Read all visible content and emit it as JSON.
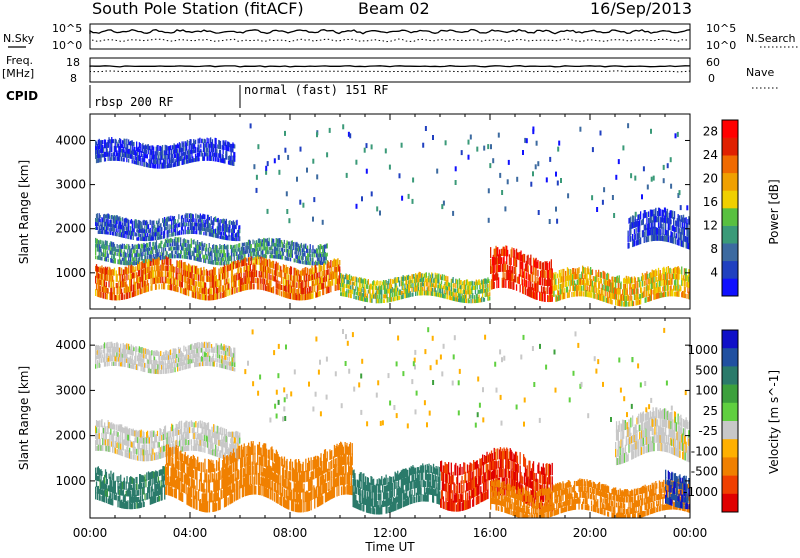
{
  "header": {
    "station": "South Pole Station (fitACF)",
    "beam": "Beam 02",
    "date": "16/Sep/2013"
  },
  "top_panels": {
    "nsky_label": "N.Sky",
    "nsky_ticks": [
      "10^5",
      "10^0"
    ],
    "nsearch_label": "N.Search",
    "nsearch_ticks": [
      "10^5",
      "10^0"
    ],
    "freq_label": "Freq.",
    "freq_unit": "[MHz]",
    "freq_ticks": [
      "18",
      "8"
    ],
    "nave_label": "Nave",
    "nave_ticks": [
      "60",
      "0"
    ],
    "cpid_label": "CPID",
    "cpid_segments": [
      {
        "label": "rbsp 200 RF",
        "start_hour": 0
      },
      {
        "label": "normal (fast) 151 RF",
        "start_hour": 6
      }
    ]
  },
  "colors": {
    "power_scale": [
      "#1010ff",
      "#2040c0",
      "#3c6aa0",
      "#3a9a78",
      "#58c040",
      "#f0d000",
      "#f0a000",
      "#f06a00",
      "#e02000",
      "#ff0000"
    ],
    "velocity_scale": [
      "#1010c8",
      "#2050a0",
      "#2a7a6a",
      "#3ca03c",
      "#60d040",
      "#c8c8c8",
      "#ffb000",
      "#f08000",
      "#f04000",
      "#e00000"
    ]
  },
  "chart_data": [
    {
      "type": "heatmap",
      "title": "",
      "ylabel": "Slant Range [km]",
      "xlabel": "",
      "xlim_hours": [
        0,
        24
      ],
      "ylim": [
        180,
        4600
      ],
      "yticks": [
        "1000",
        "2000",
        "3000",
        "4000"
      ],
      "colorbar": {
        "label": "Power [dB]",
        "ticks": [
          "4",
          "8",
          "12",
          "16",
          "20",
          "24",
          "28"
        ],
        "range": [
          0,
          30
        ]
      },
      "bands": [
        {
          "t0": 0.2,
          "t1": 5.8,
          "range": [
            3450,
            3950
          ],
          "value": 3
        },
        {
          "t0": 0.2,
          "t1": 6.0,
          "range": [
            1800,
            2250
          ],
          "value": 5
        },
        {
          "t0": 0.2,
          "t1": 9.5,
          "range": [
            1250,
            1700
          ],
          "value": 9
        },
        {
          "t0": 0.2,
          "t1": 10.0,
          "range": [
            500,
            1200
          ],
          "value": 22
        },
        {
          "t0": 10.0,
          "t1": 16.0,
          "range": [
            400,
            900
          ],
          "value": 15
        },
        {
          "t0": 16.0,
          "t1": 18.5,
          "range": [
            500,
            1400
          ],
          "value": 26
        },
        {
          "t0": 18.5,
          "t1": 24.0,
          "range": [
            350,
            1000
          ],
          "value": 18
        },
        {
          "t0": 21.5,
          "t1": 24.0,
          "range": [
            1600,
            2300
          ],
          "value": 4
        }
      ]
    },
    {
      "type": "heatmap",
      "title": "",
      "ylabel": "Slant Range [km]",
      "xlabel": "Time UT",
      "xlim_hours": [
        0,
        24
      ],
      "ylim": [
        180,
        4600
      ],
      "yticks": [
        "1000",
        "2000",
        "3000",
        "4000"
      ],
      "xticks": [
        "00:00",
        "04:00",
        "08:00",
        "12:00",
        "16:00",
        "20:00",
        "00:00"
      ],
      "colorbar": {
        "label": "Velocity [m s^-1]",
        "ticks": [
          "1000",
          "500",
          "100",
          "25",
          "-25",
          "-100",
          "-500",
          "-1000"
        ],
        "range": [
          -1000,
          1000
        ]
      },
      "bands": [
        {
          "t0": 0.2,
          "t1": 5.8,
          "range": [
            3450,
            3950
          ],
          "value": 0
        },
        {
          "t0": 0.2,
          "t1": 6.0,
          "range": [
            1550,
            2200
          ],
          "value": 0
        },
        {
          "t0": 0.2,
          "t1": 3.0,
          "range": [
            500,
            1200
          ],
          "value": 150
        },
        {
          "t0": 3.0,
          "t1": 10.5,
          "range": [
            500,
            1600
          ],
          "value": -300
        },
        {
          "t0": 10.5,
          "t1": 14.0,
          "range": [
            400,
            1200
          ],
          "value": 200
        },
        {
          "t0": 14.0,
          "t1": 18.5,
          "range": [
            500,
            1500
          ],
          "value": -800
        },
        {
          "t0": 16.0,
          "t1": 24.0,
          "range": [
            250,
            900
          ],
          "value": -300
        },
        {
          "t0": 21.0,
          "t1": 24.0,
          "range": [
            1500,
            2400
          ],
          "value": 0
        },
        {
          "t0": 23.0,
          "t1": 24.0,
          "range": [
            500,
            1200
          ],
          "value": 700
        }
      ]
    }
  ]
}
